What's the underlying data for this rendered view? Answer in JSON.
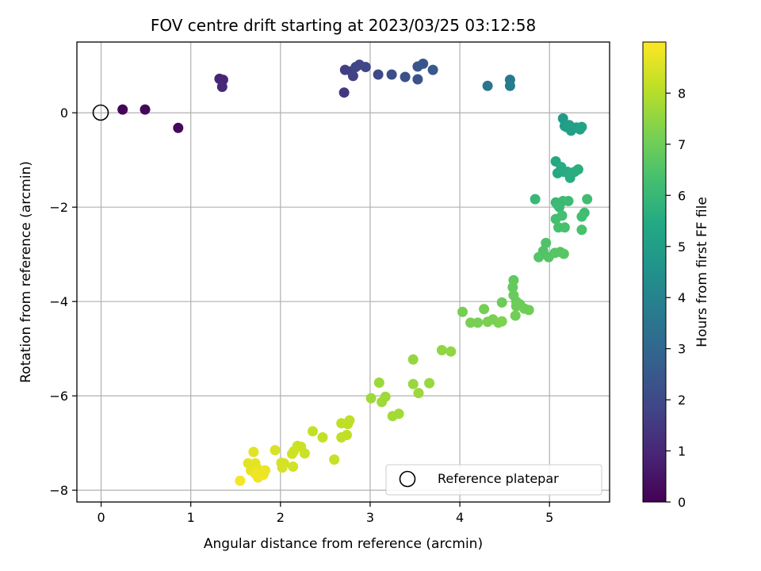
{
  "chart_data": {
    "type": "scatter",
    "title": "FOV centre drift starting at 2023/03/25 03:12:58",
    "xlabel": "Angular distance from reference (arcmin)",
    "ylabel": "Rotation from reference (arcmin)",
    "xlim": [
      -0.27,
      5.67
    ],
    "ylim": [
      -8.25,
      1.5
    ],
    "xticks": [
      0,
      1,
      2,
      3,
      4,
      5
    ],
    "yticks": [
      -8,
      -6,
      -4,
      -2,
      0
    ],
    "xtick_labels": [
      "0",
      "1",
      "2",
      "3",
      "4",
      "5"
    ],
    "ytick_labels": [
      "−8",
      "−6",
      "−4",
      "−2",
      "0"
    ],
    "grid": true,
    "colormap": "viridis",
    "colorbar": {
      "label": "Hours from first FF file",
      "range": [
        0,
        9
      ],
      "ticks": [
        0,
        1,
        2,
        3,
        4,
        5,
        6,
        7,
        8
      ],
      "tick_labels": [
        "0",
        "1",
        "2",
        "3",
        "4",
        "5",
        "6",
        "7",
        "8"
      ]
    },
    "legend": {
      "placement": "lower-right",
      "entries": [
        "Reference platepar"
      ]
    },
    "reference_point": {
      "x": 0,
      "y": 0
    },
    "points": [
      [
        0.24,
        0.07,
        0.1
      ],
      [
        0.49,
        0.07,
        0.15
      ],
      [
        0.86,
        -0.32,
        0.2
      ],
      [
        1.32,
        0.72,
        0.9
      ],
      [
        1.36,
        0.7,
        0.95
      ],
      [
        1.35,
        0.55,
        1.0
      ],
      [
        2.71,
        0.43,
        1.5
      ],
      [
        2.72,
        0.91,
        1.6
      ],
      [
        2.79,
        0.88,
        1.7
      ],
      [
        2.81,
        0.78,
        1.75
      ],
      [
        2.84,
        0.97,
        1.8
      ],
      [
        2.88,
        1.02,
        1.85
      ],
      [
        2.95,
        0.97,
        1.9
      ],
      [
        3.09,
        0.81,
        2.0
      ],
      [
        3.24,
        0.81,
        2.1
      ],
      [
        3.39,
        0.76,
        2.2
      ],
      [
        3.53,
        0.71,
        2.3
      ],
      [
        3.53,
        0.98,
        2.35
      ],
      [
        3.59,
        1.04,
        2.4
      ],
      [
        3.7,
        0.91,
        2.5
      ],
      [
        4.31,
        0.57,
        3.5
      ],
      [
        4.56,
        0.7,
        3.6
      ],
      [
        4.56,
        0.57,
        3.7
      ],
      [
        5.15,
        -0.12,
        4.9
      ],
      [
        5.17,
        -0.28,
        5.0
      ],
      [
        5.19,
        -0.3,
        5.0
      ],
      [
        5.22,
        -0.26,
        5.05
      ],
      [
        5.24,
        -0.38,
        5.1
      ],
      [
        5.3,
        -0.31,
        5.1
      ],
      [
        5.34,
        -0.35,
        5.15
      ],
      [
        5.36,
        -0.3,
        5.2
      ],
      [
        5.07,
        -1.03,
        5.4
      ],
      [
        5.09,
        -1.28,
        5.45
      ],
      [
        5.13,
        -1.15,
        5.5
      ],
      [
        5.16,
        -1.25,
        5.5
      ],
      [
        5.2,
        -1.25,
        5.55
      ],
      [
        5.23,
        -1.38,
        5.6
      ],
      [
        5.28,
        -1.25,
        5.6
      ],
      [
        5.32,
        -1.2,
        5.65
      ],
      [
        4.84,
        -1.83,
        6.0
      ],
      [
        5.07,
        -1.9,
        6.0
      ],
      [
        5.09,
        -1.95,
        6.05
      ],
      [
        5.11,
        -2.0,
        6.1
      ],
      [
        5.15,
        -1.87,
        6.1
      ],
      [
        5.21,
        -1.87,
        6.15
      ],
      [
        5.42,
        -1.83,
        6.2
      ],
      [
        5.39,
        -2.12,
        6.2
      ],
      [
        5.36,
        -2.2,
        6.25
      ],
      [
        5.07,
        -2.25,
        6.3
      ],
      [
        5.14,
        -2.18,
        6.3
      ],
      [
        5.1,
        -2.43,
        6.35
      ],
      [
        5.17,
        -2.43,
        6.35
      ],
      [
        5.36,
        -2.48,
        6.4
      ],
      [
        4.96,
        -2.76,
        6.5
      ],
      [
        4.93,
        -2.93,
        6.5
      ],
      [
        4.88,
        -3.06,
        6.55
      ],
      [
        4.99,
        -3.06,
        6.55
      ],
      [
        5.06,
        -2.97,
        6.6
      ],
      [
        5.12,
        -2.95,
        6.6
      ],
      [
        5.16,
        -2.99,
        6.65
      ],
      [
        4.6,
        -3.55,
        6.8
      ],
      [
        4.59,
        -3.7,
        6.85
      ],
      [
        4.6,
        -3.87,
        6.9
      ],
      [
        4.63,
        -4.0,
        6.9
      ],
      [
        4.47,
        -4.02,
        6.95
      ],
      [
        4.67,
        -4.06,
        6.95
      ],
      [
        4.63,
        -4.1,
        7.0
      ],
      [
        4.72,
        -4.15,
        7.0
      ],
      [
        4.77,
        -4.18,
        7.0
      ],
      [
        4.62,
        -4.3,
        7.05
      ],
      [
        4.03,
        -4.22,
        7.1
      ],
      [
        4.27,
        -4.16,
        7.1
      ],
      [
        4.12,
        -4.45,
        7.15
      ],
      [
        4.2,
        -4.45,
        7.15
      ],
      [
        4.31,
        -4.43,
        7.2
      ],
      [
        4.37,
        -4.38,
        7.2
      ],
      [
        4.43,
        -4.45,
        7.2
      ],
      [
        4.47,
        -4.42,
        7.25
      ],
      [
        3.8,
        -5.03,
        7.5
      ],
      [
        3.9,
        -5.06,
        7.5
      ],
      [
        3.48,
        -5.23,
        7.55
      ],
      [
        3.48,
        -5.75,
        7.6
      ],
      [
        3.66,
        -5.73,
        7.6
      ],
      [
        3.54,
        -5.94,
        7.65
      ],
      [
        3.1,
        -5.72,
        7.65
      ],
      [
        3.01,
        -6.05,
        7.7
      ],
      [
        3.13,
        -6.13,
        7.7
      ],
      [
        3.17,
        -6.02,
        7.7
      ],
      [
        3.25,
        -6.43,
        7.75
      ],
      [
        3.32,
        -6.38,
        7.75
      ],
      [
        2.68,
        -6.58,
        8.1
      ],
      [
        2.75,
        -6.6,
        8.1
      ],
      [
        2.77,
        -6.52,
        8.1
      ],
      [
        2.68,
        -6.88,
        8.15
      ],
      [
        2.74,
        -6.83,
        8.15
      ],
      [
        2.47,
        -6.88,
        8.2
      ],
      [
        2.36,
        -6.75,
        8.2
      ],
      [
        2.6,
        -7.35,
        8.25
      ],
      [
        2.19,
        -7.06,
        8.3
      ],
      [
        2.23,
        -7.08,
        8.3
      ],
      [
        2.27,
        -7.22,
        8.3
      ],
      [
        2.15,
        -7.17,
        8.35
      ],
      [
        2.13,
        -7.23,
        8.35
      ],
      [
        2.14,
        -7.5,
        8.4
      ],
      [
        2.01,
        -7.42,
        8.4
      ],
      [
        2.04,
        -7.43,
        8.4
      ],
      [
        2.02,
        -7.52,
        8.45
      ],
      [
        1.94,
        -7.15,
        8.5
      ],
      [
        1.7,
        -7.19,
        8.6
      ],
      [
        1.64,
        -7.43,
        8.6
      ],
      [
        1.67,
        -7.58,
        8.65
      ],
      [
        1.72,
        -7.43,
        8.65
      ],
      [
        1.75,
        -7.55,
        8.7
      ],
      [
        1.79,
        -7.6,
        8.7
      ],
      [
        1.83,
        -7.58,
        8.75
      ],
      [
        1.81,
        -7.67,
        8.75
      ],
      [
        1.75,
        -7.73,
        8.8
      ],
      [
        1.72,
        -7.65,
        8.8
      ],
      [
        1.55,
        -7.8,
        8.85
      ]
    ]
  }
}
